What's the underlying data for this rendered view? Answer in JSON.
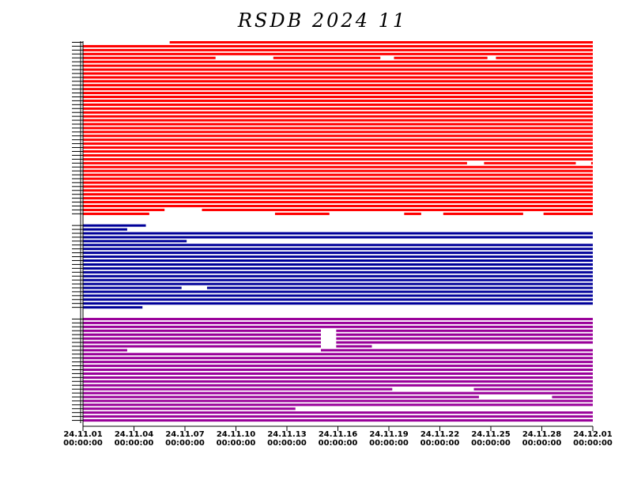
{
  "chart_data": {
    "type": "timeline",
    "title": "RSDB  2024  11",
    "x_tick_labels": [
      {
        "date": "24.11.01",
        "time": "00:00:00"
      },
      {
        "date": "24.11.04",
        "time": "00:00:00"
      },
      {
        "date": "24.11.07",
        "time": "00:00:00"
      },
      {
        "date": "24.11.10",
        "time": "00:00:00"
      },
      {
        "date": "24.11.13",
        "time": "00:00:00"
      },
      {
        "date": "24.11.16",
        "time": "00:00:00"
      },
      {
        "date": "24.11.19",
        "time": "00:00:00"
      },
      {
        "date": "24.11.22",
        "time": "00:00:00"
      },
      {
        "date": "24.11.25",
        "time": "00:00:00"
      },
      {
        "date": "24.11.28",
        "time": "00:00:00"
      },
      {
        "date": "24.12.01",
        "time": "00:00:00"
      }
    ],
    "x_range_days": [
      0,
      30
    ],
    "groups": [
      {
        "color": "#ff0000",
        "rows": 45
      },
      {
        "color": "#000099",
        "rows": 22
      },
      {
        "color": "#990099",
        "rows": 27
      }
    ],
    "gaps": [
      {
        "group": 0,
        "row": 0,
        "from_day": 0.0,
        "to_day": 5.1
      },
      {
        "group": 0,
        "row": 4,
        "from_day": 7.8,
        "to_day": 11.2
      },
      {
        "group": 0,
        "row": 4,
        "from_day": 17.5,
        "to_day": 18.3
      },
      {
        "group": 0,
        "row": 4,
        "from_day": 23.8,
        "to_day": 24.3
      },
      {
        "group": 0,
        "row": 44,
        "from_day": 3.9,
        "to_day": 11.3
      },
      {
        "group": 0,
        "row": 44,
        "from_day": 14.5,
        "to_day": 18.9
      },
      {
        "group": 0,
        "row": 44,
        "from_day": 19.9,
        "to_day": 21.2
      },
      {
        "group": 0,
        "row": 44,
        "from_day": 25.9,
        "to_day": 27.1
      },
      {
        "group": 0,
        "row": 43,
        "from_day": 4.8,
        "to_day": 7.0
      },
      {
        "group": 0,
        "row": 31,
        "from_day": 22.6,
        "to_day": 23.6
      },
      {
        "group": 0,
        "row": 31,
        "from_day": 29.0,
        "to_day": 29.9
      },
      {
        "group": 1,
        "row": 0,
        "from_day": 3.7,
        "to_day": 30.0
      },
      {
        "group": 1,
        "row": 1,
        "from_day": 2.6,
        "to_day": 30.0
      },
      {
        "group": 1,
        "row": 4,
        "from_day": 6.1,
        "to_day": 30.0
      },
      {
        "group": 1,
        "row": 16,
        "from_day": 5.8,
        "to_day": 7.3
      },
      {
        "group": 1,
        "row": 21,
        "from_day": 3.5,
        "to_day": 30.0
      },
      {
        "group": 2,
        "row": 3,
        "from_day": 14.0,
        "to_day": 14.9
      },
      {
        "group": 2,
        "row": 4,
        "from_day": 14.0,
        "to_day": 14.9
      },
      {
        "group": 2,
        "row": 5,
        "from_day": 14.0,
        "to_day": 14.9
      },
      {
        "group": 2,
        "row": 6,
        "from_day": 14.0,
        "to_day": 14.9
      },
      {
        "group": 2,
        "row": 7,
        "from_day": 14.0,
        "to_day": 14.9
      },
      {
        "group": 2,
        "row": 8,
        "from_day": 2.6,
        "to_day": 14.0
      },
      {
        "group": 2,
        "row": 7,
        "from_day": 17.0,
        "to_day": 30.0
      },
      {
        "group": 2,
        "row": 18,
        "from_day": 18.2,
        "to_day": 23.0
      },
      {
        "group": 2,
        "row": 20,
        "from_day": 23.3,
        "to_day": 27.6
      },
      {
        "group": 2,
        "row": 23,
        "from_day": 12.5,
        "to_day": 30.0
      }
    ]
  }
}
